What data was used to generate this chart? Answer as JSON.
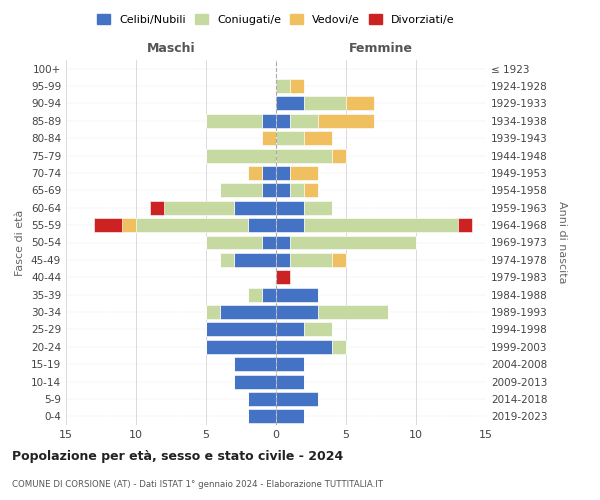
{
  "age_groups": [
    "0-4",
    "5-9",
    "10-14",
    "15-19",
    "20-24",
    "25-29",
    "30-34",
    "35-39",
    "40-44",
    "45-49",
    "50-54",
    "55-59",
    "60-64",
    "65-69",
    "70-74",
    "75-79",
    "80-84",
    "85-89",
    "90-94",
    "95-99",
    "100+"
  ],
  "birth_years": [
    "2019-2023",
    "2014-2018",
    "2009-2013",
    "2004-2008",
    "1999-2003",
    "1994-1998",
    "1989-1993",
    "1984-1988",
    "1979-1983",
    "1974-1978",
    "1969-1973",
    "1964-1968",
    "1959-1963",
    "1954-1958",
    "1949-1953",
    "1944-1948",
    "1939-1943",
    "1934-1938",
    "1929-1933",
    "1924-1928",
    "≤ 1923"
  ],
  "colors": {
    "celibe": "#4472c4",
    "coniugato": "#c5d9a0",
    "vedovo": "#f0c060",
    "divorziato": "#cc2222"
  },
  "maschi": {
    "celibe": [
      2,
      2,
      3,
      3,
      5,
      5,
      4,
      1,
      0,
      3,
      1,
      2,
      3,
      1,
      1,
      0,
      0,
      1,
      0,
      0,
      0
    ],
    "coniugato": [
      0,
      0,
      0,
      0,
      0,
      0,
      1,
      1,
      0,
      1,
      4,
      8,
      5,
      3,
      0,
      5,
      0,
      4,
      0,
      0,
      0
    ],
    "vedovo": [
      0,
      0,
      0,
      0,
      0,
      0,
      0,
      0,
      0,
      0,
      0,
      1,
      0,
      0,
      1,
      0,
      1,
      0,
      0,
      0,
      0
    ],
    "divorziato": [
      0,
      0,
      0,
      0,
      0,
      0,
      0,
      0,
      0,
      0,
      0,
      2,
      1,
      0,
      0,
      0,
      0,
      0,
      0,
      0,
      0
    ]
  },
  "femmine": {
    "celibe": [
      2,
      3,
      2,
      2,
      4,
      2,
      3,
      3,
      0,
      1,
      1,
      2,
      2,
      1,
      1,
      0,
      0,
      1,
      2,
      0,
      0
    ],
    "coniugato": [
      0,
      0,
      0,
      0,
      1,
      2,
      5,
      0,
      0,
      3,
      9,
      11,
      2,
      1,
      0,
      4,
      2,
      2,
      3,
      1,
      0
    ],
    "vedovo": [
      0,
      0,
      0,
      0,
      0,
      0,
      0,
      0,
      0,
      1,
      0,
      0,
      0,
      1,
      2,
      1,
      2,
      4,
      2,
      1,
      0
    ],
    "divorziato": [
      0,
      0,
      0,
      0,
      0,
      0,
      0,
      0,
      1,
      0,
      0,
      1,
      0,
      0,
      0,
      0,
      0,
      0,
      0,
      0,
      0
    ]
  },
  "title": "Popolazione per età, sesso e stato civile - 2024",
  "subtitle": "COMUNE DI CORSIONE (AT) - Dati ISTAT 1° gennaio 2024 - Elaborazione TUTTITALIA.IT",
  "xlabel_left": "Maschi",
  "xlabel_right": "Femmine",
  "ylabel_left": "Fasce di età",
  "ylabel_right": "Anni di nascita",
  "xlim": 15,
  "bg_color": "#ffffff",
  "grid_color": "#cccccc",
  "legend_labels": [
    "Celibi/Nubili",
    "Coniugati/e",
    "Vedovi/e",
    "Divorziati/e"
  ]
}
